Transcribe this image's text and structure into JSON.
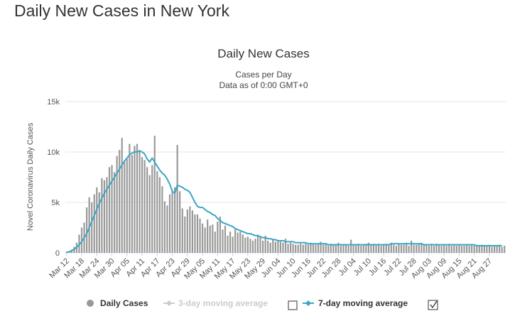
{
  "page": {
    "heading": "Daily New Cases in New York"
  },
  "colors": {
    "bars": "#999999",
    "avg7": "#3ca6c4",
    "avg3_disabled": "#cccccc",
    "grid": "#e6e6e6",
    "axis": "#ccd6eb"
  },
  "legend": {
    "daily_cases": "Daily Cases",
    "avg3": "3-day moving average",
    "avg7": "7-day moving average",
    "avg3_checked": false,
    "avg7_checked": true
  },
  "chart_data": {
    "type": "bar",
    "title": "Daily New Cases",
    "subtitle_line1": "Cases per Day",
    "subtitle_line2": "Data as of 0:00 GMT+0",
    "ylabel": "Novel Coronavirus Daily Cases",
    "ylim": [
      0,
      15000
    ],
    "yticks": [
      0,
      5000,
      10000,
      15000
    ],
    "ytick_labels": [
      "0",
      "5k",
      "10k",
      "15k"
    ],
    "x_start": "2020-03-12",
    "xtick_labels": [
      "Mar 12",
      "Mar 18",
      "Mar 24",
      "Mar 30",
      "Apr 05",
      "Apr 11",
      "Apr 17",
      "Apr 23",
      "Apr 29",
      "May 05",
      "May 11",
      "May 17",
      "May 23",
      "May 29",
      "Jun 04",
      "Jun 10",
      "Jun 16",
      "Jun 22",
      "Jun 28",
      "Jul 04",
      "Jul 10",
      "Jul 16",
      "Jul 22",
      "Jul 28",
      "Aug 03",
      "Aug 09",
      "Aug 15",
      "Aug 21",
      "Aug 27"
    ],
    "grid": true,
    "legend_position": "bottom",
    "series": [
      {
        "name": "Daily Cases",
        "type": "bar",
        "values": [
          100,
          150,
          300,
          600,
          1000,
          1800,
          2500,
          3000,
          4500,
          5500,
          5000,
          5800,
          6500,
          6000,
          7400,
          7200,
          7500,
          8500,
          8700,
          8000,
          9600,
          10200,
          11400,
          9000,
          9300,
          10800,
          9700,
          10600,
          10800,
          10200,
          9500,
          9200,
          8500,
          7700,
          8700,
          11600,
          8100,
          7500,
          6600,
          5100,
          4700,
          5800,
          6100,
          6500,
          10700,
          6100,
          4400,
          3600,
          4300,
          4600,
          4200,
          3800,
          3800,
          3400,
          2900,
          2500,
          3300,
          2700,
          2800,
          2100,
          3100,
          3600,
          2300,
          2700,
          1700,
          2100,
          1600,
          2300,
          2000,
          2100,
          1800,
          1500,
          1600,
          1400,
          1200,
          1400,
          1800,
          1600,
          1200,
          1700,
          1200,
          1000,
          1400,
          1100,
          1200,
          1100,
          1000,
          1400,
          900,
          1000,
          900,
          800,
          800,
          900,
          800,
          900,
          800,
          1000,
          900,
          800,
          900,
          1100,
          800,
          900,
          700,
          900,
          800,
          800,
          1000,
          700,
          800,
          800,
          700,
          1300,
          800,
          800,
          900,
          700,
          800,
          900,
          1000,
          800,
          900,
          800,
          900,
          700,
          800,
          900,
          800,
          1000,
          800,
          700,
          900,
          800,
          800,
          1000,
          700,
          1200,
          800,
          800,
          900,
          1000,
          800,
          800,
          700,
          900,
          700,
          900,
          800,
          700,
          800,
          700,
          900,
          700,
          800,
          700,
          800,
          700,
          700,
          800,
          700,
          800,
          700,
          700,
          700,
          800,
          700,
          700,
          800,
          600,
          700,
          700,
          800,
          600,
          700
        ]
      },
      {
        "name": "7-day moving average",
        "type": "line",
        "values": [
          50,
          100,
          200,
          350,
          550,
          800,
          1100,
          1500,
          1900,
          2500,
          3100,
          3700,
          4300,
          4900,
          5400,
          5900,
          6300,
          6700,
          7100,
          7500,
          7900,
          8300,
          8700,
          9100,
          9400,
          9700,
          9900,
          10000,
          10000,
          10100,
          10000,
          9800,
          9300,
          9000,
          9400,
          9000,
          8600,
          8200,
          7900,
          7700,
          7300,
          6800,
          6100,
          5900,
          6700,
          6600,
          6500,
          6300,
          6200,
          6000,
          5500,
          5000,
          4600,
          4500,
          4500,
          4300,
          4100,
          4000,
          3800,
          3700,
          3400,
          3200,
          3000,
          2900,
          2800,
          2700,
          2600,
          2400,
          2300,
          2200,
          2100,
          2000,
          1900,
          1900,
          1800,
          1700,
          1700,
          1600,
          1500,
          1500,
          1400,
          1400,
          1300,
          1300,
          1200,
          1200,
          1200,
          1100,
          1100,
          1100,
          1100,
          1000,
          1000,
          1000,
          1000,
          1000,
          900,
          900,
          900,
          900,
          900,
          900,
          900,
          900,
          800,
          800,
          800,
          800,
          800,
          800,
          800,
          800,
          800,
          800,
          800,
          800,
          800,
          800,
          800,
          800,
          800,
          800,
          800,
          800,
          800,
          800,
          800,
          800,
          800,
          900,
          900,
          900,
          900,
          900,
          900,
          900,
          900,
          900,
          900,
          900,
          900,
          900,
          800,
          800,
          800,
          800,
          800,
          800,
          800,
          800,
          800,
          800,
          800,
          800,
          800,
          800,
          800,
          800,
          800,
          800,
          800,
          800,
          800,
          700,
          700,
          700,
          700,
          700,
          700,
          700,
          700,
          700,
          700,
          700
        ]
      }
    ]
  }
}
